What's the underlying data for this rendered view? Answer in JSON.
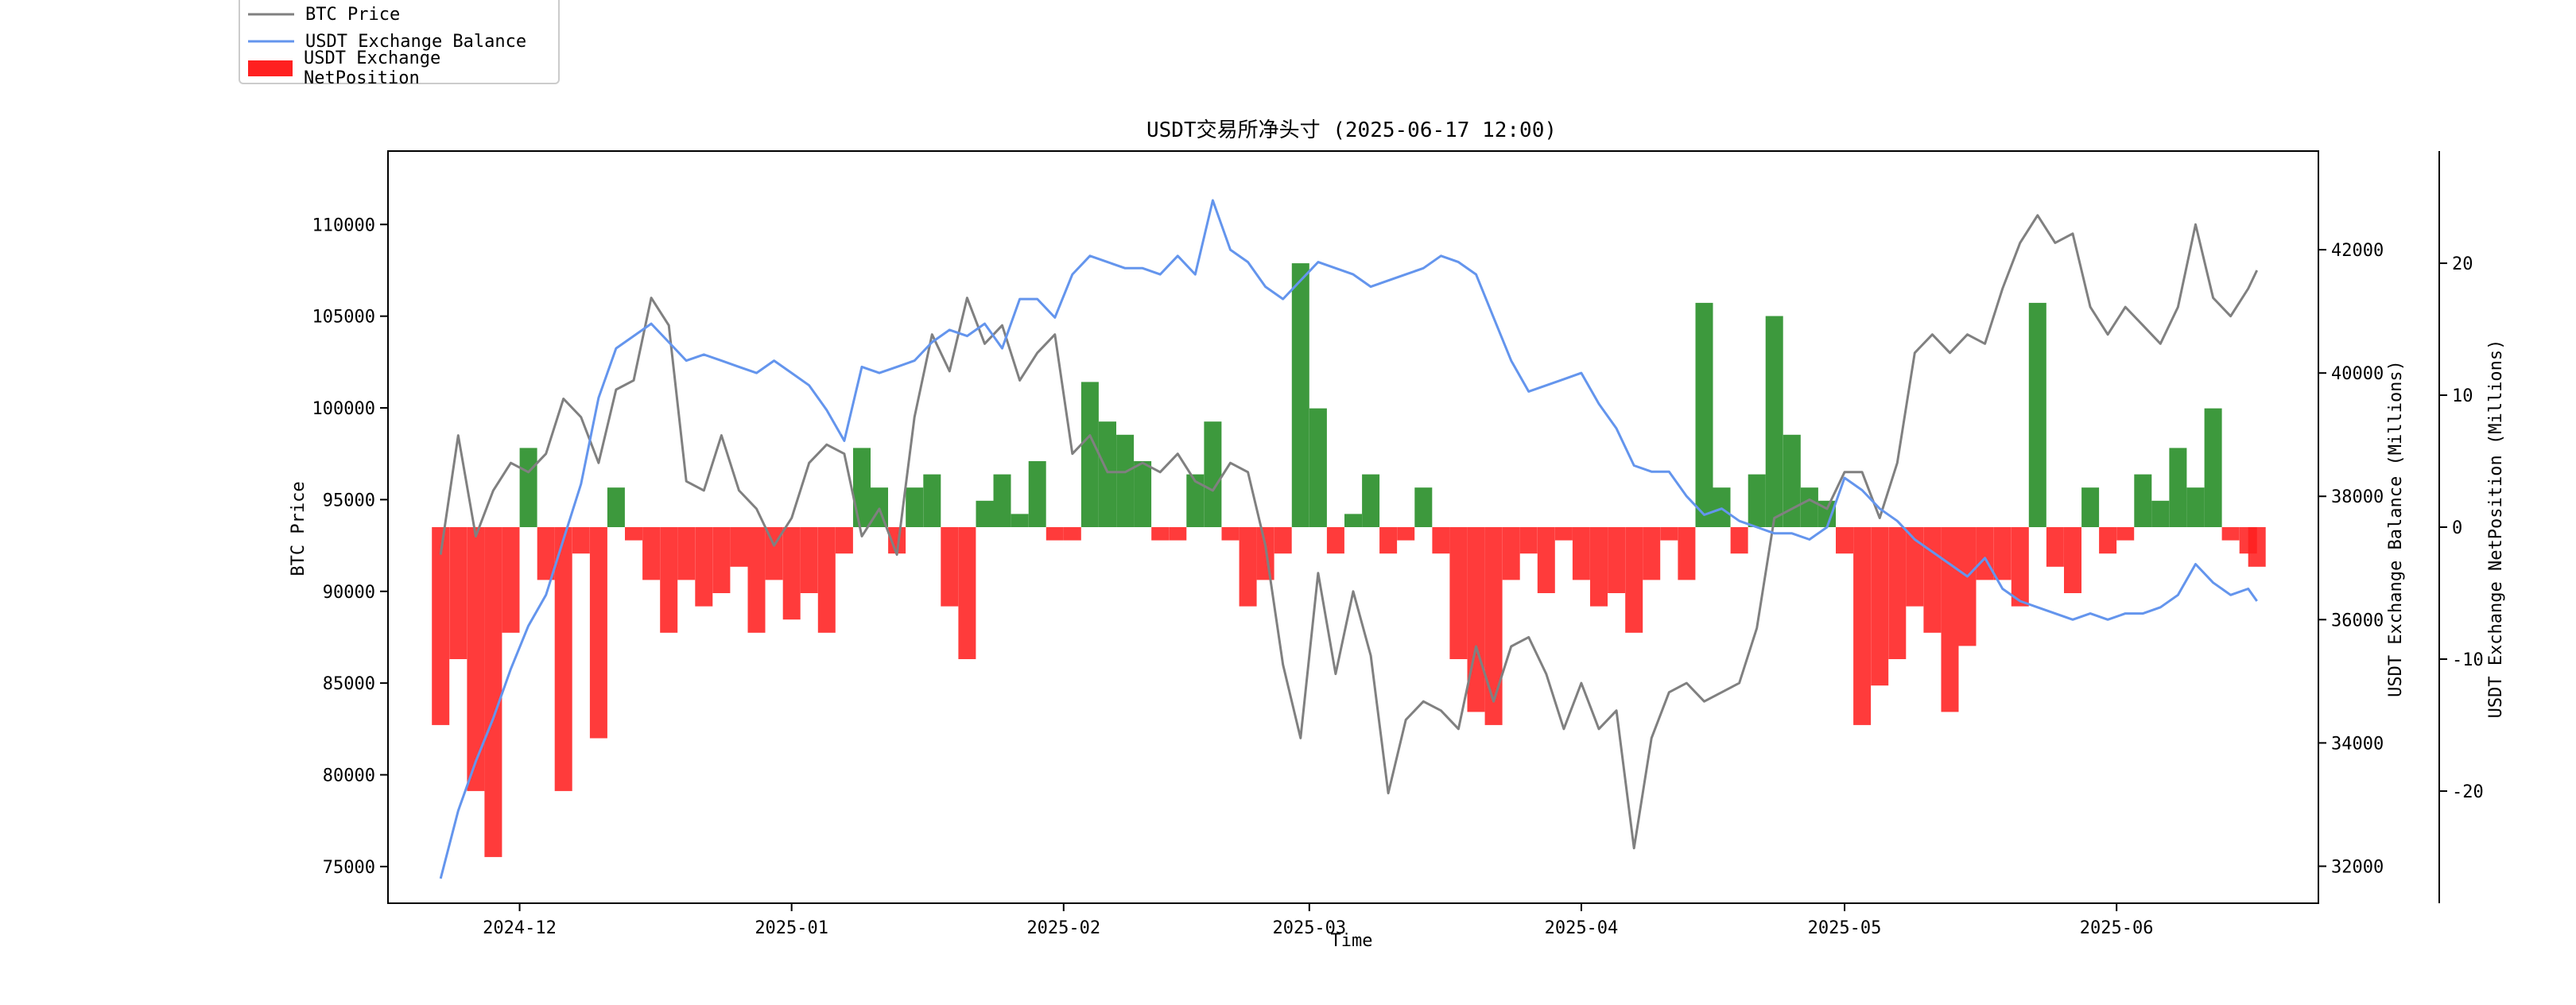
{
  "chart_data": {
    "type": "line",
    "title": "USDT交易所净头寸 (2025-06-17 12:00)",
    "xlabel": "Time",
    "ylabel_left": "BTC Price",
    "ylabel_right1": "USDT Exchange Balance (Millions)",
    "ylabel_right2": "USDT Exchange NetPosition (Millions)",
    "x_range": [
      "2024-11-16",
      "2025-06-24"
    ],
    "x_ticks": [
      "2024-12",
      "2025-01",
      "2025-02",
      "2025-03",
      "2025-04",
      "2025-05",
      "2025-06"
    ],
    "x_tick_dates": [
      "2024-12-01",
      "2025-01-01",
      "2025-02-01",
      "2025-03-01",
      "2025-04-01",
      "2025-05-01",
      "2025-06-01"
    ],
    "y_left": {
      "ylim": [
        73000,
        114000
      ],
      "ticks": [
        75000,
        80000,
        85000,
        90000,
        95000,
        100000,
        105000,
        110000
      ]
    },
    "y_right1": {
      "ylim": [
        31400,
        43600
      ],
      "ticks": [
        32000,
        34000,
        36000,
        38000,
        40000,
        42000
      ]
    },
    "y_right2": {
      "ylim": [
        -28.5,
        28.5
      ],
      "ticks": [
        -20,
        -10,
        0,
        10,
        20
      ]
    },
    "legend": {
      "placement": "top-left outside",
      "entries": [
        "BTC Price",
        "USDT Exchange Balance",
        "USDT Exchange NetPosition"
      ]
    },
    "grid": false,
    "series": [
      {
        "name": "BTC Price",
        "axis": "left",
        "color": "#808080",
        "x": [
          "2024-11-22",
          "2024-11-24",
          "2024-11-26",
          "2024-11-28",
          "2024-11-30",
          "2024-12-02",
          "2024-12-04",
          "2024-12-06",
          "2024-12-08",
          "2024-12-10",
          "2024-12-12",
          "2024-12-14",
          "2024-12-16",
          "2024-12-18",
          "2024-12-20",
          "2024-12-22",
          "2024-12-24",
          "2024-12-26",
          "2024-12-28",
          "2024-12-30",
          "2025-01-01",
          "2025-01-03",
          "2025-01-05",
          "2025-01-07",
          "2025-01-09",
          "2025-01-11",
          "2025-01-13",
          "2025-01-15",
          "2025-01-17",
          "2025-01-19",
          "2025-01-21",
          "2025-01-23",
          "2025-01-25",
          "2025-01-27",
          "2025-01-29",
          "2025-01-31",
          "2025-02-02",
          "2025-02-04",
          "2025-02-06",
          "2025-02-08",
          "2025-02-10",
          "2025-02-12",
          "2025-02-14",
          "2025-02-16",
          "2025-02-18",
          "2025-02-20",
          "2025-02-22",
          "2025-02-24",
          "2025-02-26",
          "2025-02-28",
          "2025-03-02",
          "2025-03-04",
          "2025-03-06",
          "2025-03-08",
          "2025-03-10",
          "2025-03-12",
          "2025-03-14",
          "2025-03-16",
          "2025-03-18",
          "2025-03-20",
          "2025-03-22",
          "2025-03-24",
          "2025-03-26",
          "2025-03-28",
          "2025-03-30",
          "2025-04-01",
          "2025-04-03",
          "2025-04-05",
          "2025-04-07",
          "2025-04-09",
          "2025-04-11",
          "2025-04-13",
          "2025-04-15",
          "2025-04-17",
          "2025-04-19",
          "2025-04-21",
          "2025-04-23",
          "2025-04-25",
          "2025-04-27",
          "2025-04-29",
          "2025-05-01",
          "2025-05-03",
          "2025-05-05",
          "2025-05-07",
          "2025-05-09",
          "2025-05-11",
          "2025-05-13",
          "2025-05-15",
          "2025-05-17",
          "2025-05-19",
          "2025-05-21",
          "2025-05-23",
          "2025-05-25",
          "2025-05-27",
          "2025-05-29",
          "2025-05-31",
          "2025-06-02",
          "2025-06-04",
          "2025-06-06",
          "2025-06-08",
          "2025-06-10",
          "2025-06-12",
          "2025-06-14",
          "2025-06-16",
          "2025-06-17"
        ],
        "values": [
          92000,
          98500,
          93000,
          95500,
          97000,
          96500,
          97500,
          100500,
          99500,
          97000,
          101000,
          101500,
          106000,
          104500,
          96000,
          95500,
          98500,
          95500,
          94500,
          92500,
          94000,
          97000,
          98000,
          97500,
          93000,
          94500,
          92000,
          99500,
          104000,
          102000,
          106000,
          103500,
          104500,
          101500,
          103000,
          104000,
          97500,
          98500,
          96500,
          96500,
          97000,
          96500,
          97500,
          96000,
          95500,
          97000,
          96500,
          92500,
          86000,
          82000,
          91000,
          85500,
          90000,
          86500,
          79000,
          83000,
          84000,
          83500,
          82500,
          87000,
          84000,
          87000,
          87500,
          85500,
          82500,
          85000,
          82500,
          83500,
          76000,
          82000,
          84500,
          85000,
          84000,
          84500,
          85000,
          88000,
          94000,
          94500,
          95000,
          94500,
          96500,
          96500,
          94000,
          97000,
          103000,
          104000,
          103000,
          104000,
          103500,
          106500,
          109000,
          110500,
          109000,
          109500,
          105500,
          104000,
          105500,
          104500,
          103500,
          105500,
          110000,
          106000,
          105000,
          106500,
          107500
        ]
      },
      {
        "name": "USDT Exchange Balance",
        "axis": "right1",
        "color": "#6495ED",
        "x": [
          "2024-11-22",
          "2024-11-24",
          "2024-11-26",
          "2024-11-28",
          "2024-11-30",
          "2024-12-02",
          "2024-12-04",
          "2024-12-06",
          "2024-12-08",
          "2024-12-10",
          "2024-12-12",
          "2024-12-14",
          "2024-12-16",
          "2024-12-18",
          "2024-12-20",
          "2024-12-22",
          "2024-12-24",
          "2024-12-26",
          "2024-12-28",
          "2024-12-30",
          "2025-01-01",
          "2025-01-03",
          "2025-01-05",
          "2025-01-07",
          "2025-01-09",
          "2025-01-11",
          "2025-01-13",
          "2025-01-15",
          "2025-01-17",
          "2025-01-19",
          "2025-01-21",
          "2025-01-23",
          "2025-01-25",
          "2025-01-27",
          "2025-01-29",
          "2025-01-31",
          "2025-02-02",
          "2025-02-04",
          "2025-02-06",
          "2025-02-08",
          "2025-02-10",
          "2025-02-12",
          "2025-02-14",
          "2025-02-16",
          "2025-02-18",
          "2025-02-20",
          "2025-02-22",
          "2025-02-24",
          "2025-02-26",
          "2025-02-28",
          "2025-03-02",
          "2025-03-04",
          "2025-03-06",
          "2025-03-08",
          "2025-03-10",
          "2025-03-12",
          "2025-03-14",
          "2025-03-16",
          "2025-03-18",
          "2025-03-20",
          "2025-03-22",
          "2025-03-24",
          "2025-03-26",
          "2025-03-28",
          "2025-03-30",
          "2025-04-01",
          "2025-04-03",
          "2025-04-05",
          "2025-04-07",
          "2025-04-09",
          "2025-04-11",
          "2025-04-13",
          "2025-04-15",
          "2025-04-17",
          "2025-04-19",
          "2025-04-21",
          "2025-04-23",
          "2025-04-25",
          "2025-04-27",
          "2025-04-29",
          "2025-05-01",
          "2025-05-03",
          "2025-05-05",
          "2025-05-07",
          "2025-05-09",
          "2025-05-11",
          "2025-05-13",
          "2025-05-15",
          "2025-05-17",
          "2025-05-19",
          "2025-05-21",
          "2025-05-23",
          "2025-05-25",
          "2025-05-27",
          "2025-05-29",
          "2025-05-31",
          "2025-06-02",
          "2025-06-04",
          "2025-06-06",
          "2025-06-08",
          "2025-06-10",
          "2025-06-12",
          "2025-06-14",
          "2025-06-16",
          "2025-06-17"
        ],
        "values": [
          31800,
          32900,
          33700,
          34400,
          35200,
          35900,
          36400,
          37300,
          38200,
          39600,
          40400,
          40600,
          40800,
          40500,
          40200,
          40300,
          40200,
          40100,
          40000,
          40200,
          40000,
          39800,
          39400,
          38900,
          40100,
          40000,
          40100,
          40200,
          40500,
          40700,
          40600,
          40800,
          40400,
          41200,
          41200,
          40900,
          41600,
          41900,
          41800,
          41700,
          41700,
          41600,
          41900,
          41600,
          42800,
          42000,
          41800,
          41400,
          41200,
          41500,
          41800,
          41700,
          41600,
          41400,
          41500,
          41600,
          41700,
          41900,
          41800,
          41600,
          40900,
          40200,
          39700,
          39800,
          39900,
          40000,
          39500,
          39100,
          38500,
          38400,
          38400,
          38000,
          37700,
          37800,
          37600,
          37500,
          37400,
          37400,
          37300,
          37500,
          38300,
          38100,
          37800,
          37600,
          37300,
          37100,
          36900,
          36700,
          37000,
          36500,
          36300,
          36200,
          36100,
          36000,
          36100,
          36000,
          36100,
          36100,
          36200,
          36400,
          36900,
          36600,
          36400,
          36500,
          36300
        ]
      }
    ],
    "bars": {
      "name": "USDT Exchange NetPosition",
      "axis": "right2",
      "color_positive": "#228B22",
      "color_negative": "#FF2020",
      "x": [
        "2024-11-22",
        "2024-11-24",
        "2024-11-26",
        "2024-11-28",
        "2024-11-30",
        "2024-12-02",
        "2024-12-04",
        "2024-12-06",
        "2024-12-08",
        "2024-12-10",
        "2024-12-12",
        "2024-12-14",
        "2024-12-16",
        "2024-12-18",
        "2024-12-20",
        "2024-12-22",
        "2024-12-24",
        "2024-12-26",
        "2024-12-28",
        "2024-12-30",
        "2025-01-01",
        "2025-01-03",
        "2025-01-05",
        "2025-01-07",
        "2025-01-09",
        "2025-01-11",
        "2025-01-13",
        "2025-01-15",
        "2025-01-17",
        "2025-01-19",
        "2025-01-21",
        "2025-01-23",
        "2025-01-25",
        "2025-01-27",
        "2025-01-29",
        "2025-01-31",
        "2025-02-02",
        "2025-02-04",
        "2025-02-06",
        "2025-02-08",
        "2025-02-10",
        "2025-02-12",
        "2025-02-14",
        "2025-02-16",
        "2025-02-18",
        "2025-02-20",
        "2025-02-22",
        "2025-02-24",
        "2025-02-26",
        "2025-02-28",
        "2025-03-02",
        "2025-03-04",
        "2025-03-06",
        "2025-03-08",
        "2025-03-10",
        "2025-03-12",
        "2025-03-14",
        "2025-03-16",
        "2025-03-18",
        "2025-03-20",
        "2025-03-22",
        "2025-03-24",
        "2025-03-26",
        "2025-03-28",
        "2025-03-30",
        "2025-04-01",
        "2025-04-03",
        "2025-04-05",
        "2025-04-07",
        "2025-04-09",
        "2025-04-11",
        "2025-04-13",
        "2025-04-15",
        "2025-04-17",
        "2025-04-19",
        "2025-04-21",
        "2025-04-23",
        "2025-04-25",
        "2025-04-27",
        "2025-04-29",
        "2025-05-01",
        "2025-05-03",
        "2025-05-05",
        "2025-05-07",
        "2025-05-09",
        "2025-05-11",
        "2025-05-13",
        "2025-05-15",
        "2025-05-17",
        "2025-05-19",
        "2025-05-21",
        "2025-05-23",
        "2025-05-25",
        "2025-05-27",
        "2025-05-29",
        "2025-05-31",
        "2025-06-02",
        "2025-06-04",
        "2025-06-06",
        "2025-06-08",
        "2025-06-10",
        "2025-06-12",
        "2025-06-14",
        "2025-06-16",
        "2025-06-17"
      ],
      "values": [
        -15,
        -10,
        -20,
        -25,
        -8,
        6,
        -4,
        -20,
        -2,
        -16,
        3,
        -1,
        -4,
        -8,
        -4,
        -6,
        -5,
        -3,
        -8,
        -4,
        -7,
        -5,
        -8,
        -2,
        6,
        3,
        -2,
        3,
        4,
        -6,
        -10,
        2,
        4,
        1,
        5,
        -1,
        -1,
        11,
        8,
        7,
        5,
        -1,
        -1,
        4,
        8,
        -1,
        -6,
        -4,
        -2,
        20,
        9,
        -2,
        1,
        4,
        -2,
        -1,
        3,
        -2,
        -10,
        -14,
        -15,
        -4,
        -2,
        -5,
        -1,
        -4,
        -6,
        -5,
        -8,
        -4,
        -1,
        -4,
        17,
        3,
        -2,
        4,
        16,
        7,
        3,
        2,
        -2,
        -15,
        -12,
        -10,
        -6,
        -8,
        -14,
        -9,
        -4,
        -4,
        -6,
        17,
        -3,
        -5,
        3,
        -2,
        -1,
        4,
        2,
        6,
        3,
        9,
        -1,
        -2,
        -3
      ]
    }
  }
}
